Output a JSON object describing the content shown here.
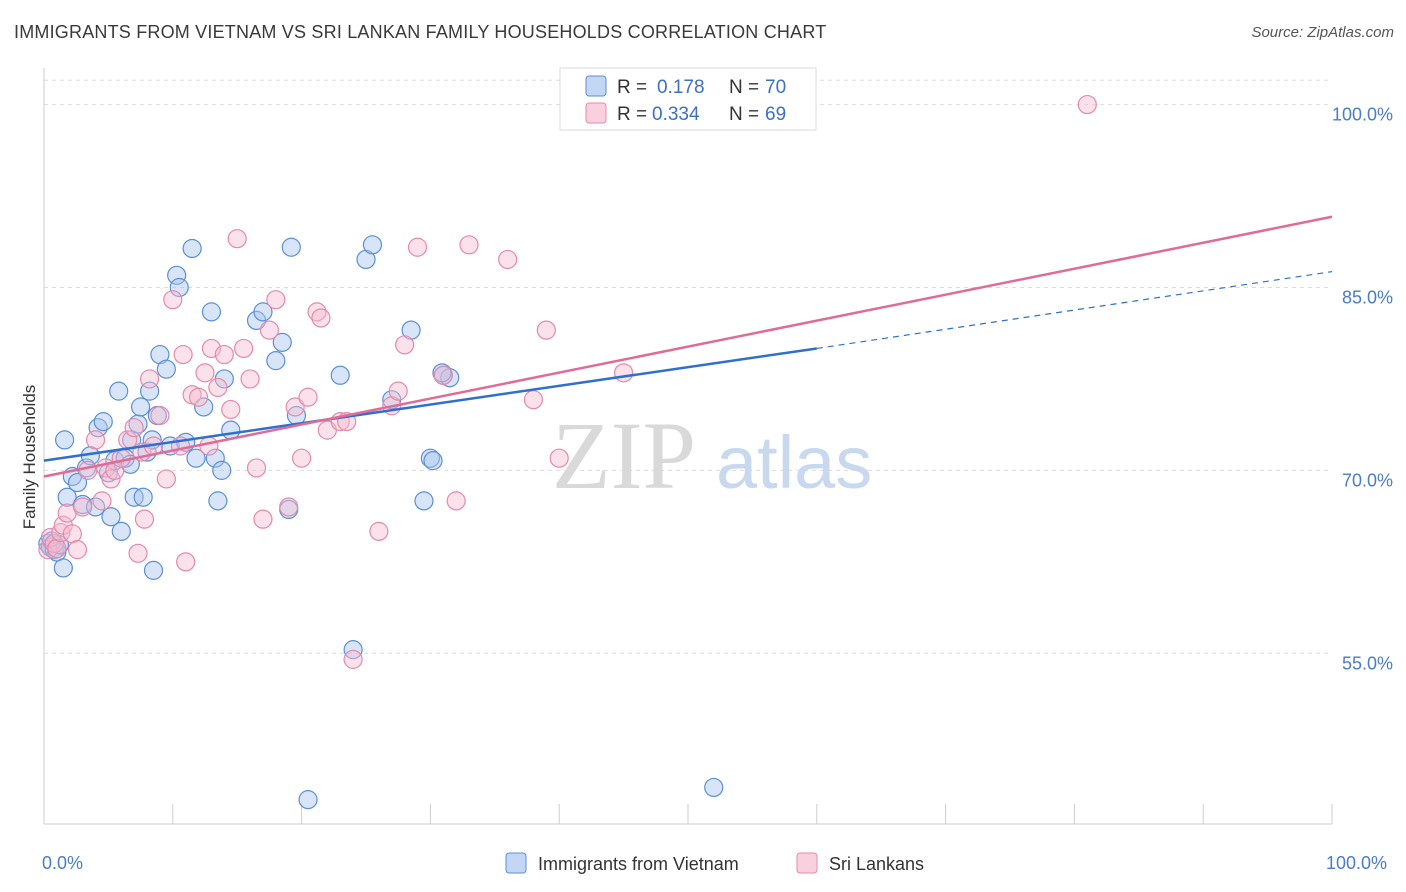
{
  "header": {
    "title": "IMMIGRANTS FROM VIETNAM VS SRI LANKAN FAMILY HOUSEHOLDS CORRELATION CHART",
    "source": "Source: ZipAtlas.com"
  },
  "watermark": {
    "zip": "ZIP",
    "atlas": "atlas"
  },
  "legend": {
    "r_label": "R =",
    "n_label": "N =",
    "entries": [
      {
        "r": "0.178",
        "n": "70"
      },
      {
        "r": "0.334",
        "n": "69"
      }
    ]
  },
  "colors": {
    "blue_fill": "#a9c6ef",
    "blue_stroke": "#5b8fd6",
    "blue_line": "#2f6fcf",
    "pink_fill": "#f6bdd0",
    "pink_stroke": "#e48aab",
    "pink_line": "#e06b97",
    "grid": "#dcdcdc",
    "tick_text": "#4a7cc7"
  },
  "chart_data": {
    "type": "scatter",
    "title": "IMMIGRANTS FROM VIETNAM VS SRI LANKAN FAMILY HOUSEHOLDS CORRELATION CHART",
    "xlabel": "",
    "ylabel": "Family Households",
    "xlim": [
      0,
      100
    ],
    "ylim": [
      41,
      103
    ],
    "x_tick_labels": [
      "0.0%",
      "100.0%"
    ],
    "y_ticks": [
      {
        "value": 55,
        "label": "55.0%"
      },
      {
        "value": 70,
        "label": "70.0%"
      },
      {
        "value": 85,
        "label": "85.0%"
      },
      {
        "value": 100,
        "label": "100.0%"
      }
    ],
    "grid": true,
    "legend_position": "top-center",
    "series": [
      {
        "name": "Immigrants from Vietnam",
        "color": "#a9c6ef",
        "trend": {
          "x0": 0,
          "y0": 70.8,
          "x1": 60,
          "y1": 80.0,
          "dashed_to_x": 100,
          "dashed_to_y": 86.3
        },
        "points": [
          [
            0.3,
            64.0
          ],
          [
            0.5,
            63.7
          ],
          [
            0.6,
            64.2
          ],
          [
            0.8,
            63.5
          ],
          [
            1.0,
            63.3
          ],
          [
            1.2,
            63.9
          ],
          [
            1.5,
            62.0
          ],
          [
            1.6,
            72.5
          ],
          [
            1.8,
            67.8
          ],
          [
            2.2,
            69.5
          ],
          [
            2.6,
            69.0
          ],
          [
            3.0,
            67.2
          ],
          [
            3.3,
            70.2
          ],
          [
            3.6,
            71.2
          ],
          [
            4.0,
            67.0
          ],
          [
            4.2,
            73.5
          ],
          [
            4.6,
            74.0
          ],
          [
            5.0,
            69.8
          ],
          [
            5.2,
            66.2
          ],
          [
            5.5,
            70.8
          ],
          [
            5.8,
            76.5
          ],
          [
            6.0,
            65.0
          ],
          [
            6.3,
            71.0
          ],
          [
            6.7,
            70.5
          ],
          [
            6.8,
            72.5
          ],
          [
            7.0,
            67.8
          ],
          [
            7.3,
            73.8
          ],
          [
            7.5,
            75.2
          ],
          [
            7.7,
            67.8
          ],
          [
            8.0,
            71.5
          ],
          [
            8.2,
            76.5
          ],
          [
            8.4,
            72.5
          ],
          [
            8.5,
            61.8
          ],
          [
            8.8,
            74.5
          ],
          [
            9.0,
            79.5
          ],
          [
            9.5,
            78.3
          ],
          [
            9.8,
            72.0
          ],
          [
            10.3,
            86.0
          ],
          [
            10.5,
            85.0
          ],
          [
            11.0,
            72.3
          ],
          [
            11.5,
            88.2
          ],
          [
            11.8,
            71.0
          ],
          [
            12.4,
            75.2
          ],
          [
            13.0,
            83.0
          ],
          [
            13.3,
            71.0
          ],
          [
            13.5,
            67.5
          ],
          [
            13.8,
            70.0
          ],
          [
            14.0,
            77.5
          ],
          [
            14.5,
            73.3
          ],
          [
            16.5,
            82.3
          ],
          [
            17.0,
            83.0
          ],
          [
            18.0,
            79.0
          ],
          [
            18.5,
            80.5
          ],
          [
            19.0,
            66.8
          ],
          [
            19.2,
            88.3
          ],
          [
            19.6,
            74.5
          ],
          [
            20.5,
            43.0
          ],
          [
            23.0,
            77.8
          ],
          [
            24.0,
            55.3
          ],
          [
            25.0,
            87.3
          ],
          [
            25.5,
            88.5
          ],
          [
            27.0,
            75.8
          ],
          [
            28.5,
            81.5
          ],
          [
            30.0,
            71.0
          ],
          [
            29.5,
            67.5
          ],
          [
            30.2,
            70.8
          ],
          [
            31.0,
            77.8
          ],
          [
            31.5,
            77.6
          ],
          [
            30.9,
            78.0
          ],
          [
            52.0,
            44.0
          ]
        ]
      },
      {
        "name": "Sri Lankans",
        "color": "#f6bdd0",
        "trend": {
          "x0": 0,
          "y0": 69.5,
          "x1": 100,
          "y1": 90.8
        },
        "points": [
          [
            0.3,
            63.5
          ],
          [
            0.5,
            64.5
          ],
          [
            0.8,
            64.0
          ],
          [
            1.0,
            63.6
          ],
          [
            1.3,
            64.9
          ],
          [
            1.5,
            65.5
          ],
          [
            1.8,
            66.5
          ],
          [
            2.2,
            64.8
          ],
          [
            2.6,
            63.5
          ],
          [
            3.0,
            67.0
          ],
          [
            3.4,
            70.0
          ],
          [
            4.0,
            72.5
          ],
          [
            4.5,
            67.5
          ],
          [
            4.8,
            70.2
          ],
          [
            5.2,
            69.3
          ],
          [
            5.5,
            70.0
          ],
          [
            6.0,
            71.0
          ],
          [
            6.5,
            72.5
          ],
          [
            7.0,
            73.5
          ],
          [
            7.3,
            63.2
          ],
          [
            7.6,
            71.5
          ],
          [
            7.8,
            66.0
          ],
          [
            8.2,
            77.5
          ],
          [
            8.5,
            72.0
          ],
          [
            9.0,
            74.5
          ],
          [
            9.5,
            69.3
          ],
          [
            10.0,
            84.0
          ],
          [
            10.6,
            72.0
          ],
          [
            10.8,
            79.5
          ],
          [
            11.0,
            62.5
          ],
          [
            11.5,
            76.2
          ],
          [
            12.0,
            76.0
          ],
          [
            12.5,
            78.0
          ],
          [
            12.8,
            72.0
          ],
          [
            13.0,
            80.0
          ],
          [
            13.5,
            76.8
          ],
          [
            14.0,
            79.5
          ],
          [
            14.5,
            75.0
          ],
          [
            15.0,
            89.0
          ],
          [
            15.5,
            80.0
          ],
          [
            16.0,
            77.5
          ],
          [
            16.5,
            70.2
          ],
          [
            17.0,
            66.0
          ],
          [
            17.5,
            81.5
          ],
          [
            18.0,
            84.0
          ],
          [
            19.0,
            67.0
          ],
          [
            19.5,
            75.2
          ],
          [
            20.0,
            71.0
          ],
          [
            20.5,
            76.0
          ],
          [
            21.2,
            83.0
          ],
          [
            21.5,
            82.5
          ],
          [
            22.0,
            73.3
          ],
          [
            23.0,
            74.0
          ],
          [
            23.5,
            74.0
          ],
          [
            24.0,
            54.5
          ],
          [
            26.0,
            65.0
          ],
          [
            27.0,
            75.3
          ],
          [
            27.5,
            76.5
          ],
          [
            28.0,
            80.3
          ],
          [
            29.0,
            88.3
          ],
          [
            31.0,
            77.8
          ],
          [
            32.0,
            67.5
          ],
          [
            33.0,
            88.5
          ],
          [
            36.0,
            87.3
          ],
          [
            38.0,
            75.8
          ],
          [
            39.0,
            81.5
          ],
          [
            40.0,
            71.0
          ],
          [
            45.0,
            78.0
          ],
          [
            81.0,
            100.0
          ]
        ]
      }
    ]
  },
  "bottom_legend": {
    "items": [
      {
        "label": "Immigrants from Vietnam"
      },
      {
        "label": "Sri Lankans"
      }
    ]
  }
}
